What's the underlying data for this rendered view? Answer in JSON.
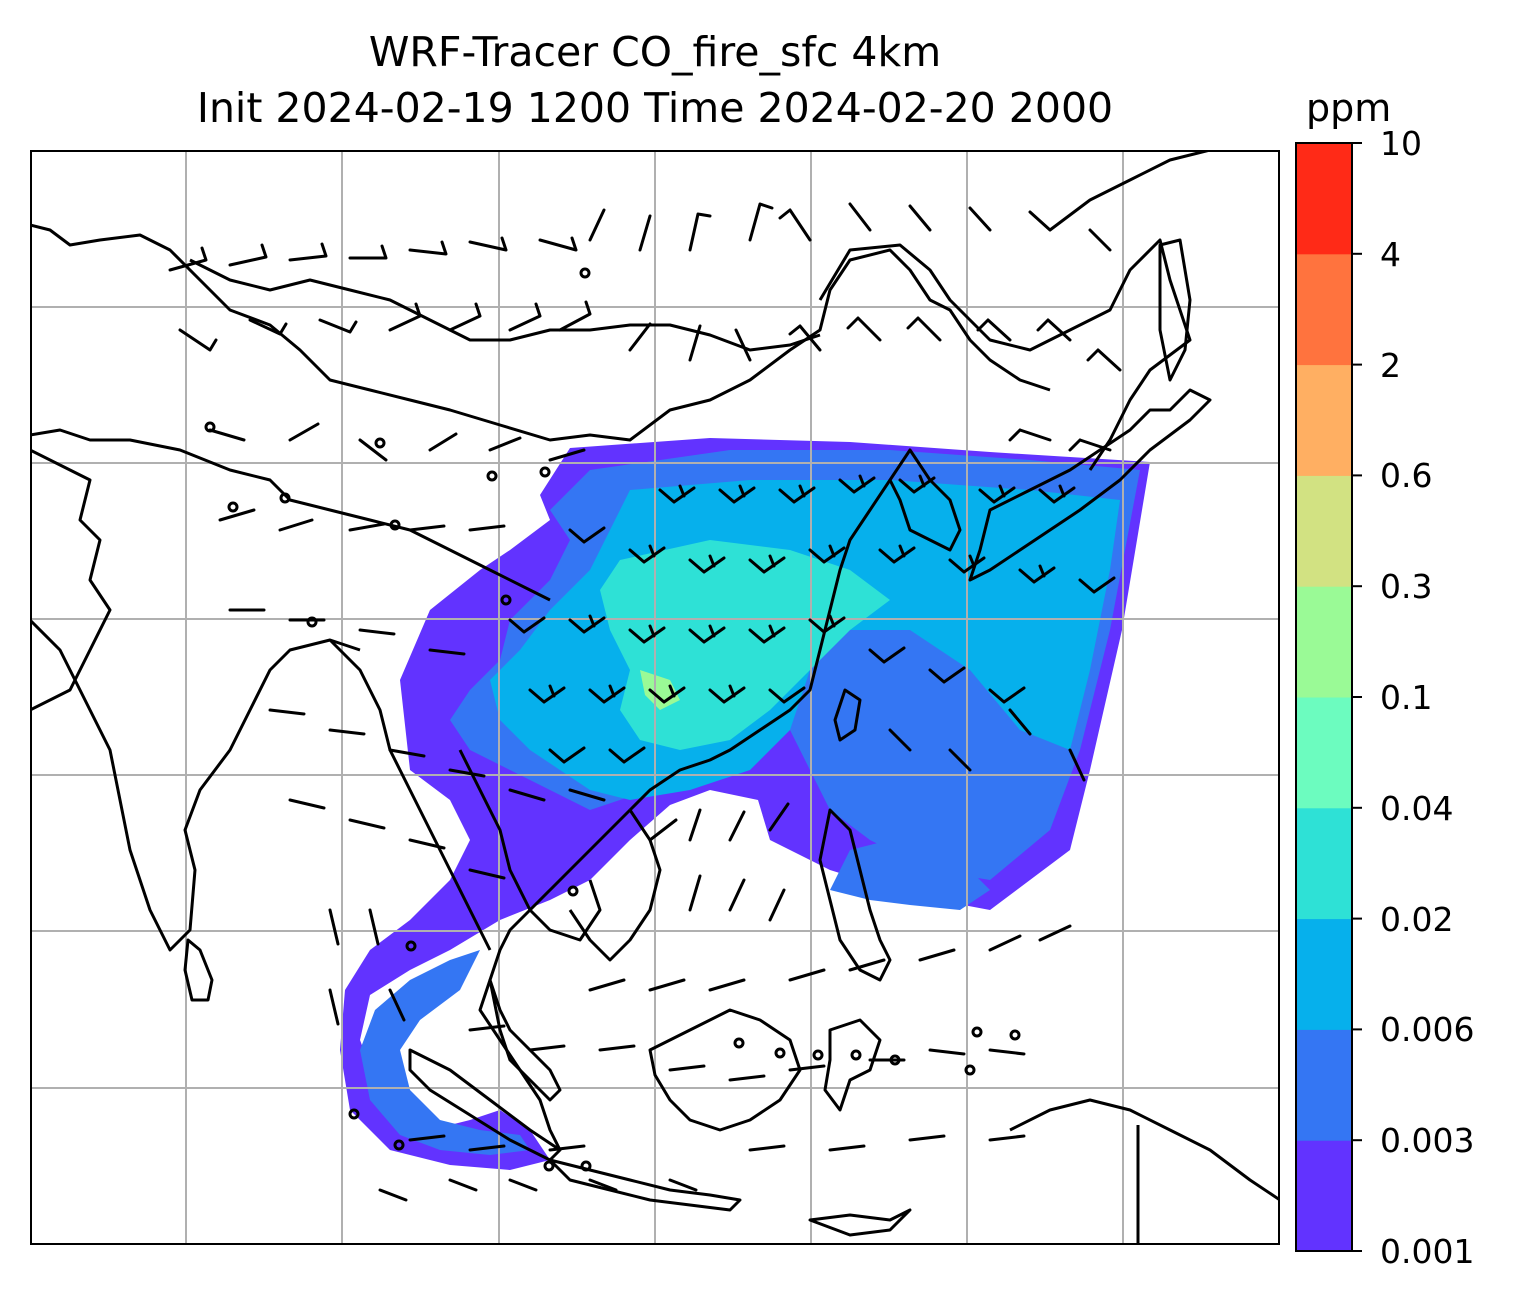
{
  "title_line1": "WRF-Tracer CO_fire_sfc 4km",
  "title_line2": "Init 2024-02-19 1200 Time 2024-02-20 2000",
  "colorbar": {
    "unit": "ppm",
    "ticks": [
      "0.001",
      "0.003",
      "0.006",
      "0.02",
      "0.04",
      "0.1",
      "0.3",
      "0.6",
      "2",
      "4",
      "10"
    ],
    "colors": [
      "#6233ff",
      "#3476f3",
      "#06b0ec",
      "#2ee1d6",
      "#6cfcbf",
      "#9afa96",
      "#d2e282",
      "#ffaf62",
      "#ff733e",
      "#ff2a17"
    ]
  },
  "map": {
    "gridlines": true,
    "coastline_color": "#000000",
    "grid_color": "#b0b0b0"
  }
}
